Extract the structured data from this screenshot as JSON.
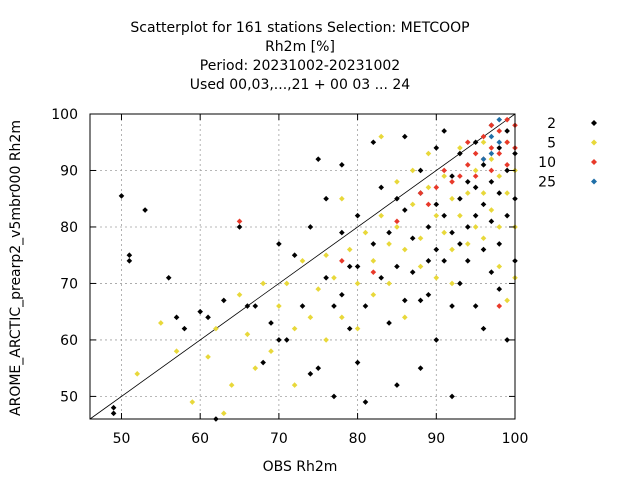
{
  "chart_data": {
    "type": "scatter",
    "title_lines": [
      "Scatterplot for  161 stations Selection: METCOOP",
      "Rh2m [%]",
      "Period: 20231002-20231002",
      "Used  00,03,...,21  + 00 03 ... 24"
    ],
    "xlabel": "OBS Rh2m",
    "ylabel": "AROME_ARCTIC_prearp2_v5mbr000 Rh2m",
    "xlim": [
      46,
      100
    ],
    "ylim": [
      46,
      100
    ],
    "xticks": [
      50,
      60,
      70,
      80,
      90,
      100
    ],
    "yticks": [
      50,
      60,
      70,
      80,
      90,
      100
    ],
    "grid": true,
    "legend_position": "right",
    "reference_line": "x = y",
    "series": [
      {
        "name": "2",
        "color": "#000000",
        "points": [
          [
            49,
            48
          ],
          [
            49,
            47
          ],
          [
            50,
            85.5
          ],
          [
            51,
            75
          ],
          [
            51,
            74
          ],
          [
            53,
            83
          ],
          [
            56,
            71
          ],
          [
            57,
            64
          ],
          [
            58,
            62
          ],
          [
            60,
            65
          ],
          [
            61,
            64
          ],
          [
            62,
            46
          ],
          [
            63,
            67
          ],
          [
            65,
            80
          ],
          [
            66,
            66
          ],
          [
            67,
            66
          ],
          [
            68,
            56
          ],
          [
            69,
            63
          ],
          [
            70,
            77
          ],
          [
            70,
            60
          ],
          [
            71,
            60
          ],
          [
            72,
            75
          ],
          [
            73,
            66
          ],
          [
            74,
            80
          ],
          [
            74,
            54
          ],
          [
            75,
            92
          ],
          [
            75,
            55
          ],
          [
            76,
            85
          ],
          [
            76,
            71
          ],
          [
            77,
            66
          ],
          [
            77,
            50
          ],
          [
            78,
            91
          ],
          [
            78,
            79
          ],
          [
            78,
            68
          ],
          [
            79,
            73
          ],
          [
            79,
            62
          ],
          [
            80,
            82
          ],
          [
            80,
            73
          ],
          [
            80,
            56
          ],
          [
            81,
            66
          ],
          [
            81,
            49
          ],
          [
            82,
            95
          ],
          [
            82,
            77
          ],
          [
            83,
            87
          ],
          [
            83,
            71
          ],
          [
            84,
            79
          ],
          [
            84,
            63
          ],
          [
            85,
            85
          ],
          [
            85,
            73
          ],
          [
            85,
            52
          ],
          [
            86,
            96
          ],
          [
            86,
            83
          ],
          [
            86,
            67
          ],
          [
            87,
            78
          ],
          [
            87,
            72
          ],
          [
            88,
            90
          ],
          [
            88,
            86
          ],
          [
            88,
            67
          ],
          [
            88,
            55
          ],
          [
            89,
            80
          ],
          [
            89,
            74
          ],
          [
            89,
            68
          ],
          [
            90,
            94
          ],
          [
            90,
            84
          ],
          [
            90,
            76
          ],
          [
            90,
            60
          ],
          [
            91,
            97
          ],
          [
            91,
            82
          ],
          [
            91,
            74
          ],
          [
            92,
            89
          ],
          [
            92,
            79
          ],
          [
            92,
            66
          ],
          [
            92,
            50
          ],
          [
            93,
            93
          ],
          [
            93,
            85
          ],
          [
            93,
            77
          ],
          [
            93,
            70
          ],
          [
            94,
            88
          ],
          [
            94,
            80
          ],
          [
            94,
            74
          ],
          [
            95,
            95
          ],
          [
            95,
            87
          ],
          [
            95,
            82
          ],
          [
            95,
            66
          ],
          [
            96,
            91
          ],
          [
            96,
            84
          ],
          [
            96,
            76
          ],
          [
            96,
            62
          ],
          [
            97,
            98
          ],
          [
            97,
            88
          ],
          [
            97,
            81
          ],
          [
            97,
            72
          ],
          [
            98,
            94
          ],
          [
            98,
            86
          ],
          [
            98,
            77
          ],
          [
            98,
            69
          ],
          [
            99,
            97
          ],
          [
            99,
            90
          ],
          [
            99,
            82
          ],
          [
            99,
            60
          ],
          [
            100,
            93
          ],
          [
            100,
            85
          ],
          [
            100,
            74
          ]
        ]
      },
      {
        "name": "5",
        "color": "#e8d83a",
        "points": [
          [
            52,
            54
          ],
          [
            55,
            63
          ],
          [
            57,
            58
          ],
          [
            59,
            49
          ],
          [
            61,
            57
          ],
          [
            62,
            62
          ],
          [
            63,
            47
          ],
          [
            64,
            52
          ],
          [
            65,
            68
          ],
          [
            66,
            61
          ],
          [
            67,
            55
          ],
          [
            68,
            70
          ],
          [
            69,
            58
          ],
          [
            70,
            66
          ],
          [
            71,
            70
          ],
          [
            72,
            62
          ],
          [
            72,
            52
          ],
          [
            73,
            74
          ],
          [
            74,
            64
          ],
          [
            75,
            69
          ],
          [
            76,
            60
          ],
          [
            76,
            75
          ],
          [
            77,
            71
          ],
          [
            78,
            64
          ],
          [
            78,
            85
          ],
          [
            79,
            76
          ],
          [
            80,
            70
          ],
          [
            80,
            62
          ],
          [
            81,
            79
          ],
          [
            82,
            74
          ],
          [
            82,
            68
          ],
          [
            83,
            82
          ],
          [
            83,
            96
          ],
          [
            84,
            77
          ],
          [
            84,
            70
          ],
          [
            85,
            88
          ],
          [
            85,
            80
          ],
          [
            86,
            76
          ],
          [
            86,
            64
          ],
          [
            87,
            84
          ],
          [
            87,
            90
          ],
          [
            88,
            78
          ],
          [
            88,
            73
          ],
          [
            89,
            87
          ],
          [
            89,
            93
          ],
          [
            90,
            82
          ],
          [
            90,
            71
          ],
          [
            91,
            89
          ],
          [
            91,
            79
          ],
          [
            92,
            85
          ],
          [
            92,
            76
          ],
          [
            92,
            70
          ],
          [
            93,
            82
          ],
          [
            93,
            94
          ],
          [
            94,
            77
          ],
          [
            94,
            86
          ],
          [
            95,
            90
          ],
          [
            95,
            80
          ],
          [
            96,
            95
          ],
          [
            96,
            86
          ],
          [
            96,
            78
          ],
          [
            97,
            92
          ],
          [
            97,
            83
          ],
          [
            98,
            89
          ],
          [
            98,
            80
          ],
          [
            98,
            73
          ],
          [
            99,
            95
          ],
          [
            99,
            86
          ],
          [
            99,
            67
          ],
          [
            100,
            90
          ],
          [
            100,
            80
          ],
          [
            100,
            71
          ]
        ]
      },
      {
        "name": "10",
        "color": "#e8392a",
        "points": [
          [
            65,
            81
          ],
          [
            78,
            74
          ],
          [
            82,
            72
          ],
          [
            85,
            81
          ],
          [
            88,
            86
          ],
          [
            89,
            84
          ],
          [
            90,
            87
          ],
          [
            91,
            90
          ],
          [
            92,
            88
          ],
          [
            93,
            89
          ],
          [
            94,
            91
          ],
          [
            94,
            95
          ],
          [
            95,
            93
          ],
          [
            95,
            89
          ],
          [
            96,
            96
          ],
          [
            96,
            92
          ],
          [
            97,
            98
          ],
          [
            97,
            94
          ],
          [
            97,
            90
          ],
          [
            98,
            97
          ],
          [
            98,
            93
          ],
          [
            98,
            66
          ],
          [
            99,
            99
          ],
          [
            99,
            95
          ],
          [
            99,
            91
          ],
          [
            100,
            98
          ],
          [
            100,
            94
          ]
        ]
      },
      {
        "name": "25",
        "color": "#1f6fa8",
        "points": [
          [
            96,
            92
          ],
          [
            97,
            93
          ],
          [
            97,
            96
          ],
          [
            98,
            99
          ],
          [
            98,
            95
          ]
        ]
      }
    ]
  }
}
